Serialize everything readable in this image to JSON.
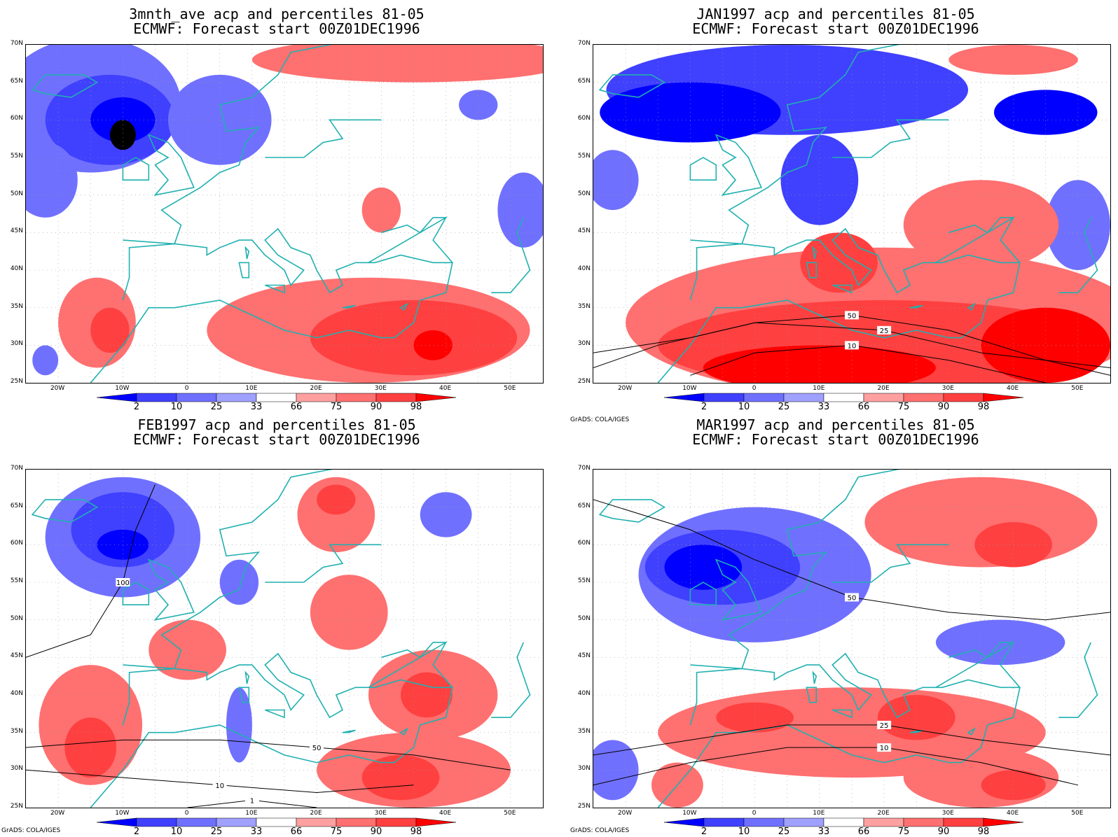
{
  "panels": [
    {
      "title_line1": "3mnth_ave acp and percentiles 81-05",
      "title_line2": "ECMWF: Forecast start 00Z01DEC1996",
      "blobs": [
        {
          "c": "b1",
          "lon": -15,
          "lat": 62,
          "rx": 14,
          "ry": 9
        },
        {
          "c": "b2",
          "lon": -12,
          "lat": 60,
          "rx": 10,
          "ry": 6
        },
        {
          "c": "b3",
          "lon": -10,
          "lat": 60,
          "rx": 5,
          "ry": 3
        },
        {
          "c": "b4",
          "lon": -10,
          "lat": 58,
          "rx": 2,
          "ry": 2
        },
        {
          "c": "b1",
          "lon": 5,
          "lat": 60,
          "rx": 8,
          "ry": 6
        },
        {
          "c": "b1",
          "lon": -22,
          "lat": 52,
          "rx": 5,
          "ry": 5
        },
        {
          "c": "b1",
          "lon": 52,
          "lat": 48,
          "rx": 4,
          "ry": 5
        },
        {
          "c": "b1",
          "lon": 45,
          "lat": 62,
          "rx": 3,
          "ry": 2
        },
        {
          "c": "r1",
          "lon": 35,
          "lat": 68,
          "rx": 25,
          "ry": 3
        },
        {
          "c": "r1",
          "lon": 28,
          "lat": 32,
          "rx": 25,
          "ry": 7
        },
        {
          "c": "r2",
          "lon": 35,
          "lat": 31,
          "rx": 16,
          "ry": 5
        },
        {
          "c": "r3",
          "lon": 38,
          "lat": 30,
          "rx": 3,
          "ry": 2
        },
        {
          "c": "r1",
          "lon": -14,
          "lat": 33,
          "rx": 6,
          "ry": 6
        },
        {
          "c": "r2",
          "lon": -12,
          "lat": 32,
          "rx": 3,
          "ry": 3
        },
        {
          "c": "r1",
          "lon": 30,
          "lat": 48,
          "rx": 3,
          "ry": 3
        },
        {
          "c": "b1",
          "lon": -22,
          "lat": 28,
          "rx": 2,
          "ry": 2
        }
      ],
      "contours": []
    },
    {
      "title_line1": "JAN1997 acp and percentiles 81-05",
      "title_line2": "ECMWF: Forecast start 00Z01DEC1996",
      "blobs": [
        {
          "c": "b2",
          "lon": 5,
          "lat": 64,
          "rx": 28,
          "ry": 6
        },
        {
          "c": "b3",
          "lon": -10,
          "lat": 61,
          "rx": 14,
          "ry": 4
        },
        {
          "c": "b3",
          "lon": 45,
          "lat": 61,
          "rx": 8,
          "ry": 3
        },
        {
          "c": "b2",
          "lon": 10,
          "lat": 52,
          "rx": 6,
          "ry": 6
        },
        {
          "c": "b1",
          "lon": 50,
          "lat": 46,
          "rx": 5,
          "ry": 6
        },
        {
          "c": "b1",
          "lon": -22,
          "lat": 52,
          "rx": 4,
          "ry": 4
        },
        {
          "c": "r1",
          "lon": 20,
          "lat": 33,
          "rx": 40,
          "ry": 10
        },
        {
          "c": "r2",
          "lon": 20,
          "lat": 30,
          "rx": 35,
          "ry": 6
        },
        {
          "c": "r3",
          "lon": 10,
          "lat": 27,
          "rx": 18,
          "ry": 3
        },
        {
          "c": "r3",
          "lon": 45,
          "lat": 30,
          "rx": 10,
          "ry": 5
        },
        {
          "c": "r2",
          "lon": 13,
          "lat": 41,
          "rx": 6,
          "ry": 4
        },
        {
          "c": "r1",
          "lon": 35,
          "lat": 46,
          "rx": 12,
          "ry": 6
        },
        {
          "c": "r1",
          "lon": 40,
          "lat": 68,
          "rx": 10,
          "ry": 2
        }
      ],
      "contours": [
        {
          "pts": [
            [
              -25,
              27
            ],
            [
              -15,
              30
            ],
            [
              0,
              33
            ],
            [
              15,
              34
            ],
            [
              30,
              32
            ],
            [
              45,
              28
            ],
            [
              55,
              26
            ]
          ],
          "label": "50"
        },
        {
          "pts": [
            [
              -25,
              29
            ],
            [
              -10,
              31
            ],
            [
              0,
              33
            ],
            [
              20,
              32
            ],
            [
              35,
              29
            ],
            [
              55,
              27
            ]
          ],
          "label": "25"
        },
        {
          "pts": [
            [
              -10,
              26
            ],
            [
              0,
              29
            ],
            [
              15,
              30
            ],
            [
              30,
              28
            ],
            [
              45,
              25
            ]
          ],
          "label": "10"
        }
      ]
    },
    {
      "title_line1": "FEB1997 acp and percentiles 81-05",
      "title_line2": "ECMWF: Forecast start 00Z01DEC1996",
      "blobs": [
        {
          "c": "b1",
          "lon": -10,
          "lat": 61,
          "rx": 12,
          "ry": 8
        },
        {
          "c": "b2",
          "lon": -10,
          "lat": 62,
          "rx": 8,
          "ry": 5
        },
        {
          "c": "b3",
          "lon": -10,
          "lat": 60,
          "rx": 4,
          "ry": 2
        },
        {
          "c": "b1",
          "lon": 8,
          "lat": 55,
          "rx": 3,
          "ry": 3
        },
        {
          "c": "b1",
          "lon": 40,
          "lat": 64,
          "rx": 4,
          "ry": 3
        },
        {
          "c": "r1",
          "lon": -15,
          "lat": 36,
          "rx": 8,
          "ry": 8
        },
        {
          "c": "r2",
          "lon": -15,
          "lat": 33,
          "rx": 4,
          "ry": 4
        },
        {
          "c": "r1",
          "lon": 23,
          "lat": 64,
          "rx": 6,
          "ry": 5
        },
        {
          "c": "r2",
          "lon": 23,
          "lat": 66,
          "rx": 3,
          "ry": 2
        },
        {
          "c": "r1",
          "lon": 25,
          "lat": 51,
          "rx": 6,
          "ry": 5
        },
        {
          "c": "r1",
          "lon": 38,
          "lat": 40,
          "rx": 10,
          "ry": 6
        },
        {
          "c": "r2",
          "lon": 37,
          "lat": 40,
          "rx": 4,
          "ry": 3
        },
        {
          "c": "r1",
          "lon": 35,
          "lat": 30,
          "rx": 15,
          "ry": 5
        },
        {
          "c": "r2",
          "lon": 33,
          "lat": 29,
          "rx": 6,
          "ry": 3
        },
        {
          "c": "r1",
          "lon": 0,
          "lat": 46,
          "rx": 6,
          "ry": 4
        },
        {
          "c": "b1",
          "lon": 8,
          "lat": 36,
          "rx": 2,
          "ry": 5
        }
      ],
      "contours": [
        {
          "pts": [
            [
              -25,
              30
            ],
            [
              -10,
              29
            ],
            [
              5,
              28
            ],
            [
              20,
              27
            ],
            [
              35,
              28
            ]
          ],
          "label": "10"
        },
        {
          "pts": [
            [
              -25,
              33
            ],
            [
              -10,
              34
            ],
            [
              5,
              34
            ],
            [
              20,
              33
            ],
            [
              35,
              32
            ],
            [
              50,
              30
            ]
          ],
          "label": "50"
        },
        {
          "pts": [
            [
              -25,
              45
            ],
            [
              -15,
              48
            ],
            [
              -10,
              55
            ],
            [
              -8,
              62
            ],
            [
              -5,
              68
            ]
          ],
          "label": "100"
        },
        {
          "pts": [
            [
              0,
              25
            ],
            [
              10,
              26
            ],
            [
              20,
              25
            ]
          ],
          "label": "1"
        }
      ]
    },
    {
      "title_line1": "MAR1997 acp and percentiles 81-05",
      "title_line2": "ECMWF: Forecast start 00Z01DEC1996",
      "blobs": [
        {
          "c": "b1",
          "lon": 0,
          "lat": 56,
          "rx": 18,
          "ry": 9
        },
        {
          "c": "b2",
          "lon": -5,
          "lat": 57,
          "rx": 12,
          "ry": 5
        },
        {
          "c": "b3",
          "lon": -8,
          "lat": 57,
          "rx": 6,
          "ry": 3
        },
        {
          "c": "b1",
          "lon": 38,
          "lat": 47,
          "rx": 10,
          "ry": 3
        },
        {
          "c": "b1",
          "lon": -22,
          "lat": 30,
          "rx": 4,
          "ry": 4
        },
        {
          "c": "r1",
          "lon": 35,
          "lat": 63,
          "rx": 18,
          "ry": 6
        },
        {
          "c": "r2",
          "lon": 40,
          "lat": 60,
          "rx": 6,
          "ry": 3
        },
        {
          "c": "r1",
          "lon": 15,
          "lat": 35,
          "rx": 30,
          "ry": 6
        },
        {
          "c": "r2",
          "lon": 0,
          "lat": 37,
          "rx": 6,
          "ry": 2
        },
        {
          "c": "r2",
          "lon": 25,
          "lat": 37,
          "rx": 6,
          "ry": 3
        },
        {
          "c": "r1",
          "lon": 35,
          "lat": 29,
          "rx": 12,
          "ry": 4
        },
        {
          "c": "r2",
          "lon": 40,
          "lat": 28,
          "rx": 5,
          "ry": 2
        },
        {
          "c": "r1",
          "lon": -12,
          "lat": 28,
          "rx": 4,
          "ry": 3
        }
      ],
      "contours": [
        {
          "pts": [
            [
              -25,
              28
            ],
            [
              -10,
              31
            ],
            [
              5,
              33
            ],
            [
              20,
              33
            ],
            [
              35,
              31
            ],
            [
              50,
              28
            ]
          ],
          "label": "10"
        },
        {
          "pts": [
            [
              -25,
              32
            ],
            [
              -10,
              34
            ],
            [
              5,
              36
            ],
            [
              20,
              36
            ],
            [
              35,
              34
            ],
            [
              55,
              32
            ]
          ],
          "label": "25"
        },
        {
          "pts": [
            [
              -25,
              66
            ],
            [
              -10,
              62
            ],
            [
              0,
              58
            ],
            [
              15,
              53
            ],
            [
              30,
              51
            ],
            [
              45,
              50
            ],
            [
              55,
              51
            ]
          ],
          "label": "50"
        }
      ]
    }
  ],
  "lat_labels": [
    "70N",
    "65N",
    "60N",
    "55N",
    "50N",
    "45N",
    "40N",
    "35N",
    "30N",
    "25N"
  ],
  "lon_labels": [
    "20W",
    "10W",
    "0",
    "10E",
    "20E",
    "30E",
    "40E",
    "50E"
  ],
  "colorbar_labels": [
    "2",
    "10",
    "25",
    "33",
    "66",
    "75",
    "90",
    "98"
  ],
  "colors": {
    "b3": "#0000ff",
    "b2": "#4040ff",
    "b1": "#7070ff",
    "b0": "#a0a0ff",
    "r0": "#ffa0a0",
    "r1": "#ff7070",
    "r2": "#ff4040",
    "r3": "#ff0000",
    "coast": "#20b0b0"
  },
  "colorbar_colors": [
    "#0000ff",
    "#4040ff",
    "#7070ff",
    "#a0a0ff",
    "#ffffff",
    "#ffa0a0",
    "#ff7070",
    "#ff4040",
    "#ff0000"
  ],
  "credit": "GrADS: COLA/IGES"
}
